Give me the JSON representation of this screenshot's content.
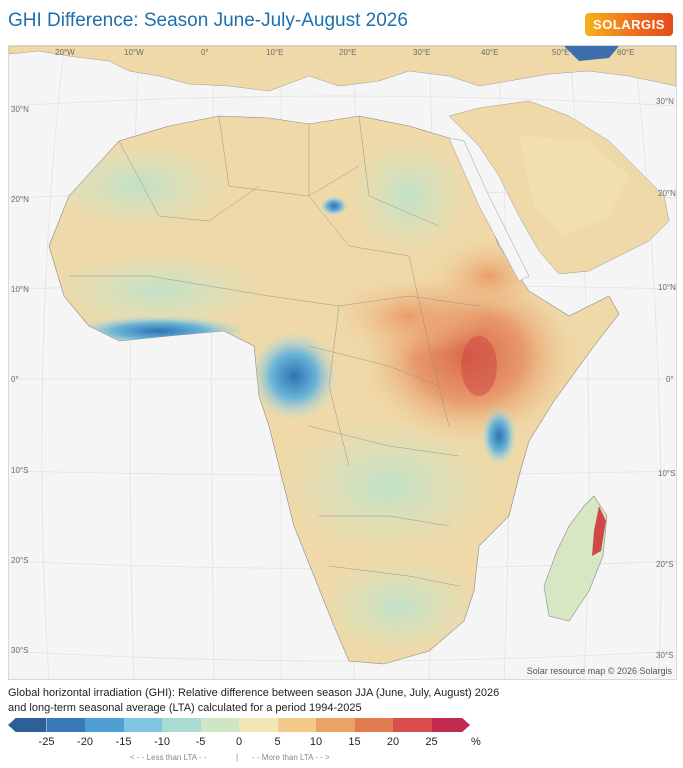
{
  "title": "GHI Difference: Season June-July-August 2026",
  "logo_text": "SOLARGIS",
  "map": {
    "lon_labels": [
      "20°W",
      "10°W",
      "0°",
      "10°E",
      "20°E",
      "30°E",
      "40°E",
      "50°E",
      "60°E"
    ],
    "lat_labels_left": [
      "30°N",
      "20°N",
      "10°N",
      "0°",
      "10°S",
      "20°S",
      "30°S"
    ],
    "lat_labels_right": [
      "30°N",
      "20°N",
      "10°N",
      "0°",
      "10°S",
      "20°S",
      "30°S"
    ],
    "credit": "Solar resource map © 2026 Solargis"
  },
  "caption": {
    "line1": "Global horizontal irradiation (GHI): Relative difference between season JJA (June, July, August) 2026",
    "line2": "and long-term seasonal average (LTA) calculated for a period 1994-2025"
  },
  "legend": {
    "colors": [
      "#2e5f98",
      "#3a7ab8",
      "#4f9fd2",
      "#7fc4e0",
      "#a9dbd2",
      "#cfe6c6",
      "#f3e6b5",
      "#f2cb8b",
      "#eba266",
      "#e07b52",
      "#d94e4d",
      "#c12b4d"
    ],
    "ticks": [
      "-25",
      "-20",
      "-15",
      "-10",
      "-5",
      "0",
      "5",
      "10",
      "15",
      "20",
      "25"
    ],
    "unit": "%",
    "less_label": "< - - Less than LTA - -",
    "divider": "|",
    "more_label": "- - More than LTA - - >"
  }
}
